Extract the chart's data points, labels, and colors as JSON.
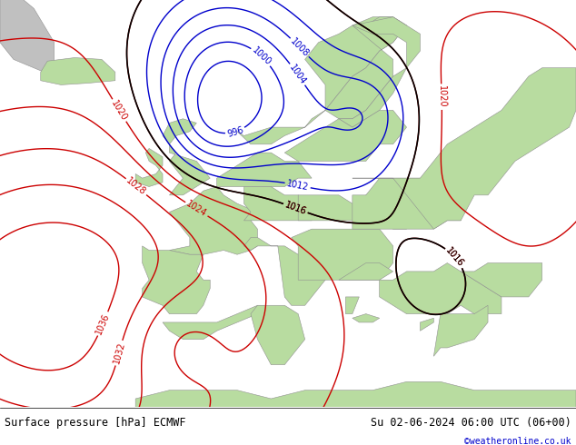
{
  "title_left": "Surface pressure [hPa] ECMWF",
  "title_right": "Su 02-06-2024 06:00 UTC (06+00)",
  "copyright": "©weatheronline.co.uk",
  "bg_ocean": "#aec9e8",
  "bg_land_green": "#b8dca0",
  "bg_land_gray": "#b4b4b4",
  "contour_red_color": "#cc0000",
  "contour_blue_color": "#0000cc",
  "contour_black_color": "#000000",
  "label_fontsize": 7,
  "title_fontsize": 8.5,
  "copyright_fontsize": 7,
  "figsize": [
    6.34,
    4.9
  ],
  "dpi": 100,
  "lon_min": -30,
  "lon_max": 55,
  "lat_min": 25,
  "lat_max": 73,
  "pressure_centers": [
    {
      "lon": 3,
      "lat": 63,
      "value": 998,
      "spread_lon": 7,
      "spread_lat": 6
    },
    {
      "lon": -7,
      "lat": 32,
      "value": 1010,
      "spread_lon": 5,
      "spread_lat": 4
    },
    {
      "lon": 22,
      "lat": 56,
      "value": 1010,
      "spread_lon": 8,
      "spread_lat": 7
    },
    {
      "lon": 38,
      "lat": 43,
      "value": 1012,
      "spread_lon": 6,
      "spread_lat": 5
    },
    {
      "lon": -20,
      "lat": 35,
      "value": 1038,
      "spread_lon": 20,
      "spread_lat": 14
    },
    {
      "lon": 45,
      "lat": 58,
      "value": 1022,
      "spread_lon": 12,
      "spread_lat": 10
    }
  ],
  "base_pressure": 1018
}
